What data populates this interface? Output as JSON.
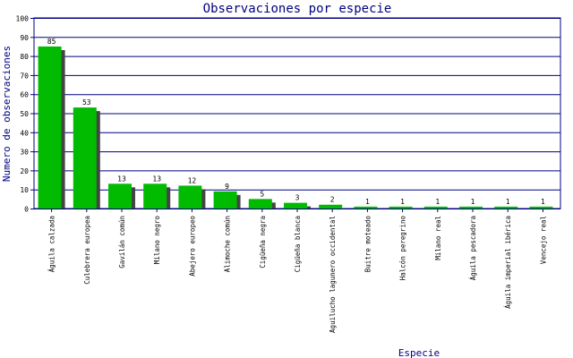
{
  "chart_data": {
    "type": "bar",
    "title": "Observaciones por especie",
    "xlabel": "Especie",
    "ylabel": "Numero de observaciones",
    "ylim": [
      0,
      100
    ],
    "yticks": [
      0,
      10,
      20,
      30,
      40,
      50,
      60,
      70,
      80,
      90,
      100
    ],
    "grid": true,
    "categories": [
      "Águila calzada",
      "Culebrera europea",
      "Gavilán común",
      "Milano negro",
      "Abejero europeo",
      "Alimoche común",
      "Cigüeña negra",
      "Cigüeña blanca",
      "Aguilucho lagunero occidental",
      "Buitre moteado",
      "Halcón peregrino",
      "Milano real",
      "Águila pescadora",
      "Águila imperial ibérica",
      "Vencejo real"
    ],
    "values": [
      85,
      53,
      13,
      13,
      12,
      9,
      5,
      3,
      2,
      1,
      1,
      1,
      1,
      1,
      1
    ],
    "colors": {
      "bar": "#00bb00",
      "shadow": "#444444",
      "axis": "#000080",
      "text": "#000080",
      "label": "#000000"
    }
  }
}
